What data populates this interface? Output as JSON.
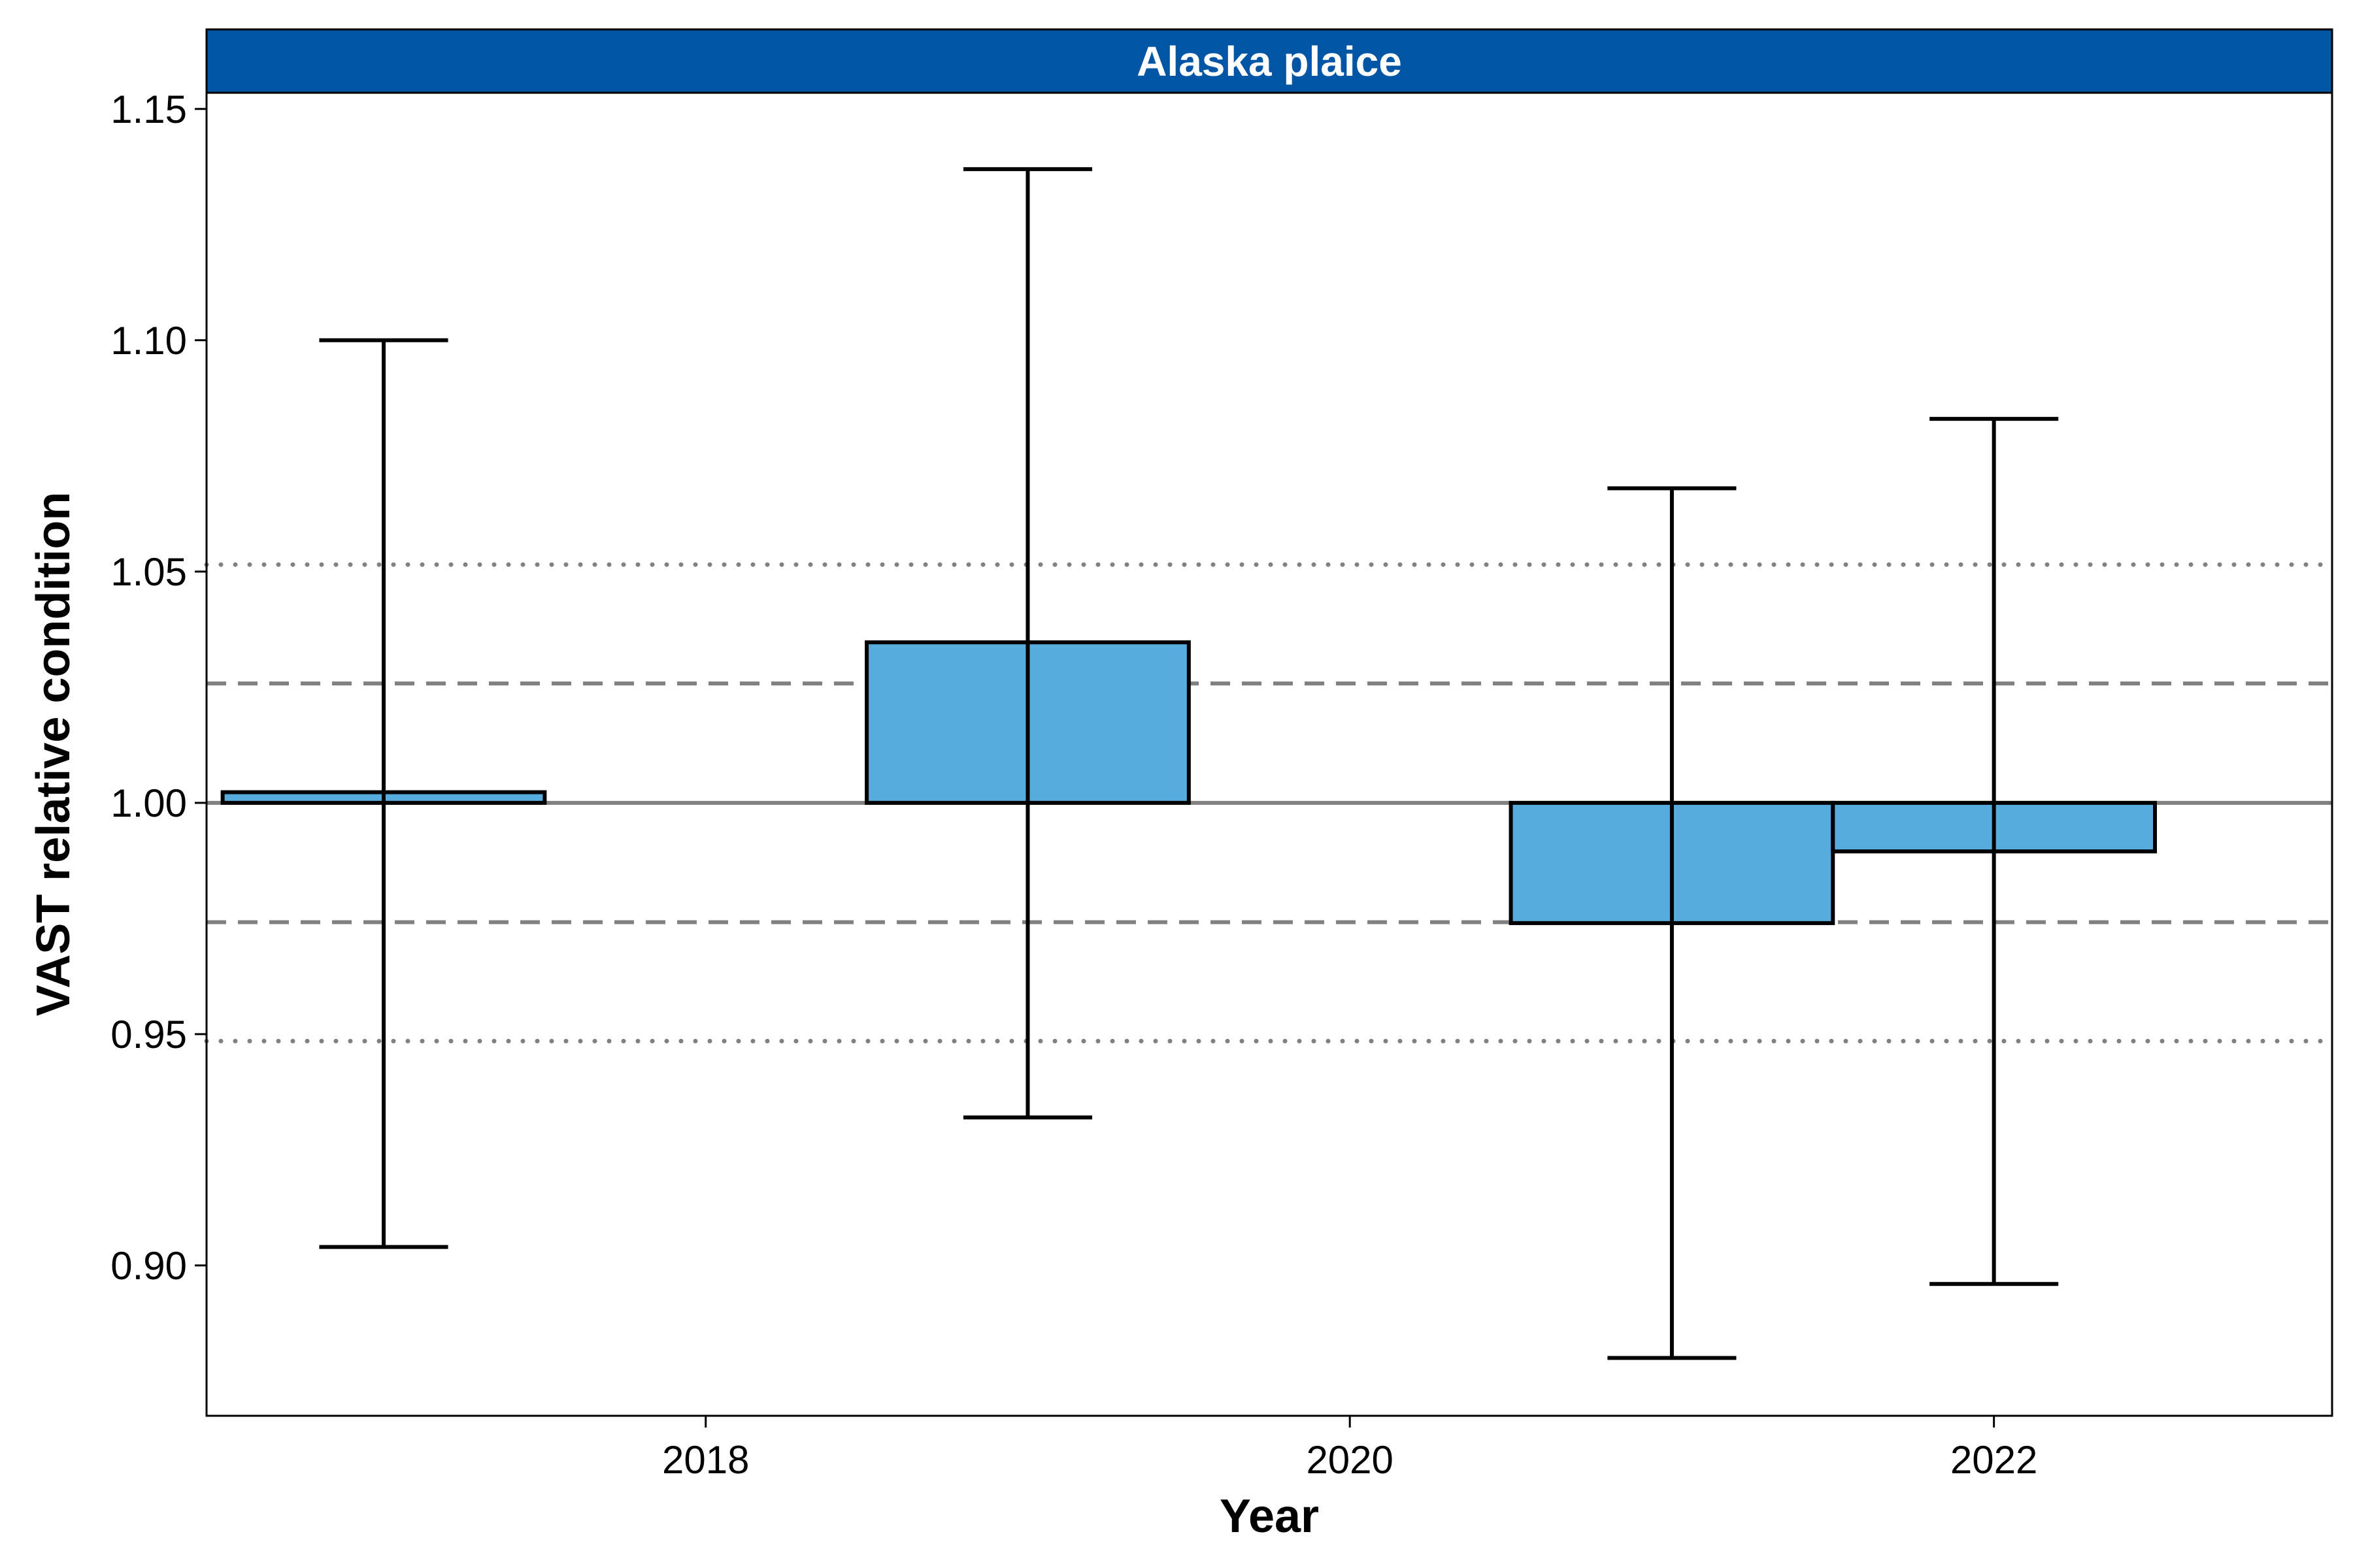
{
  "chart_data": {
    "type": "bar",
    "panel_title": "Alaska plaice",
    "xlabel": "Year",
    "ylabel": "VAST relative condition",
    "x_ticks": [
      2018,
      2020,
      2022
    ],
    "y_ticks": [
      "0.90",
      "0.95",
      "1.00",
      "1.05",
      "1.10",
      "1.15"
    ],
    "xlim": [
      2016.45,
      2023.05
    ],
    "ylim": [
      0.8675,
      1.1535
    ],
    "baseline": 1.0,
    "reference_lines": [
      {
        "value": 1.0,
        "style": "solid"
      },
      {
        "value": 1.0258,
        "style": "dashed"
      },
      {
        "value": 0.9742,
        "style": "dashed"
      },
      {
        "value": 1.0515,
        "style": "dotted"
      },
      {
        "value": 0.9485,
        "style": "dotted"
      }
    ],
    "bars": [
      {
        "year": 2017,
        "value": 1.0023,
        "lower": 0.904,
        "upper": 1.1
      },
      {
        "year": 2019,
        "value": 1.0347,
        "lower": 0.932,
        "upper": 1.137
      },
      {
        "year": 2021,
        "value": 0.974,
        "lower": 0.88,
        "upper": 1.068
      },
      {
        "year": 2022,
        "value": 0.9895,
        "lower": 0.896,
        "upper": 1.083
      }
    ],
    "bar_color": "#56ACDC",
    "strip_color": "#0055A4",
    "reference_color": "#808080",
    "grid": false
  }
}
